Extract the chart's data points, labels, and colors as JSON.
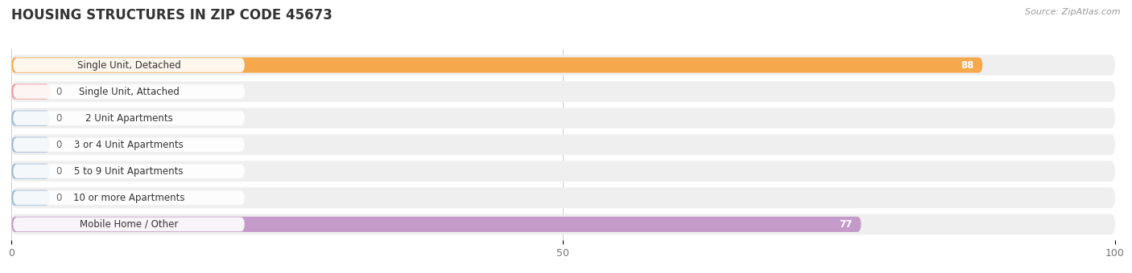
{
  "title": "HOUSING STRUCTURES IN ZIP CODE 45673",
  "source": "Source: ZipAtlas.com",
  "categories": [
    "Single Unit, Detached",
    "Single Unit, Attached",
    "2 Unit Apartments",
    "3 or 4 Unit Apartments",
    "5 to 9 Unit Apartments",
    "10 or more Apartments",
    "Mobile Home / Other"
  ],
  "values": [
    88,
    0,
    0,
    0,
    0,
    0,
    77
  ],
  "bar_colors": [
    "#F5A94C",
    "#F09898",
    "#9BBAD6",
    "#9BBAD6",
    "#9BBAD6",
    "#9BBAD6",
    "#C49AC8"
  ],
  "bg_row_color": "#EFEFEF",
  "bg_row_border": "#E0E0E0",
  "xlim": [
    0,
    100
  ],
  "xticks": [
    0,
    50,
    100
  ],
  "label_fontsize": 8.5,
  "title_fontsize": 12,
  "background_color": "#FFFFFF"
}
